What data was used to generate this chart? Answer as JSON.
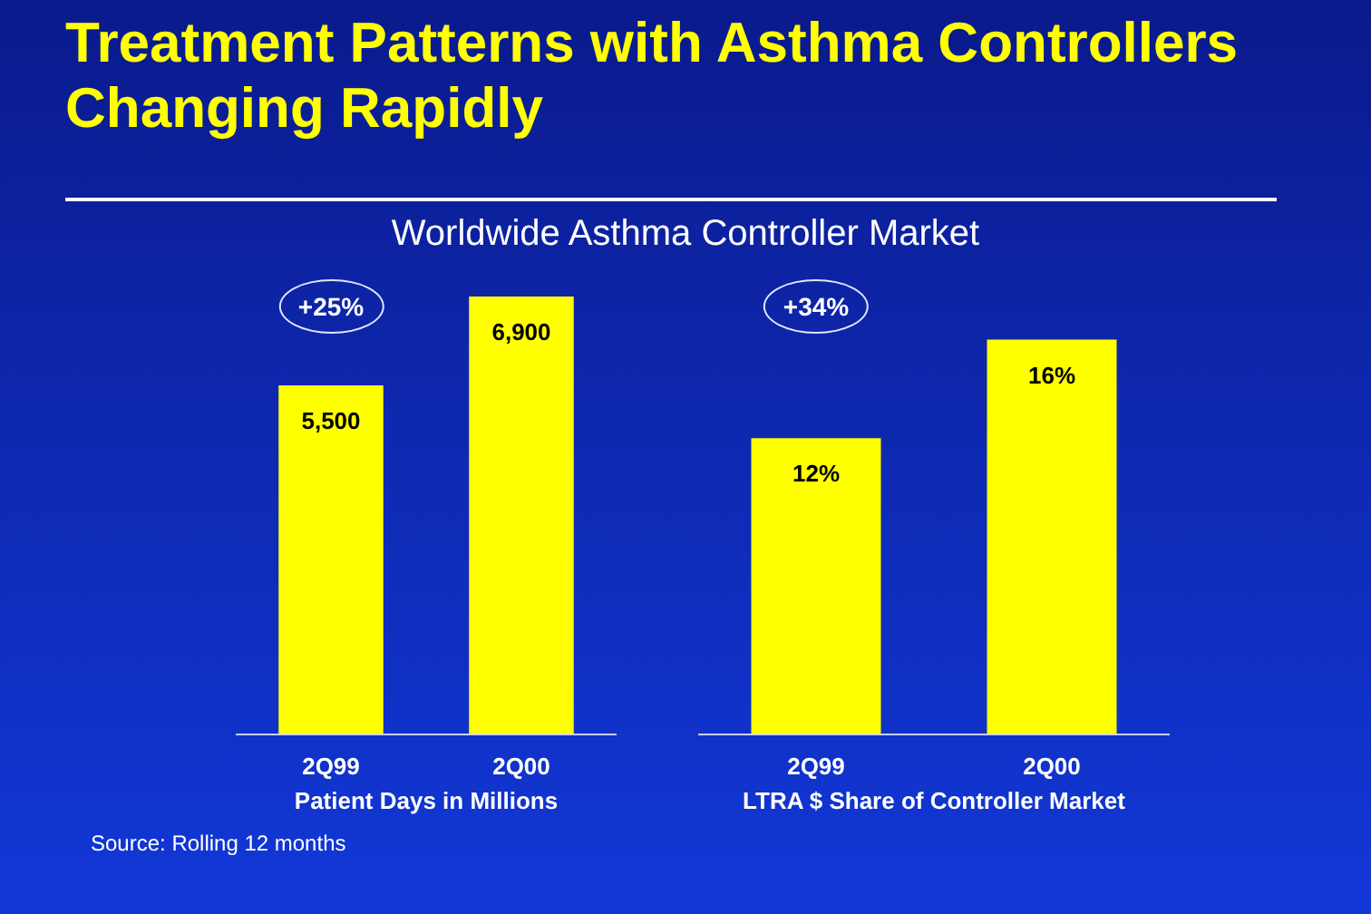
{
  "chart_data": [
    {
      "type": "bar",
      "title": "Treatment Patterns with Asthma Controllers Changing Rapidly",
      "subtitle": "Worldwide Asthma Controller Market",
      "categories": [
        "2Q99",
        "2Q00"
      ],
      "values": [
        5500,
        6900
      ],
      "value_labels": [
        "5,500",
        "6,900"
      ],
      "color": "#ffff00",
      "xlabel": "Patient Days in Millions",
      "annotations": [
        "+25%",
        "Source: Rolling 12 months"
      ]
    },
    {
      "type": "bar",
      "categories": [
        "2Q99",
        "2Q00"
      ],
      "values": [
        12,
        16
      ],
      "value_labels": [
        "12%",
        "16%"
      ],
      "color": "#ffff00",
      "xlabel": "LTRA $ Share of Controller Market",
      "annotations": [
        "+34%"
      ]
    }
  ]
}
